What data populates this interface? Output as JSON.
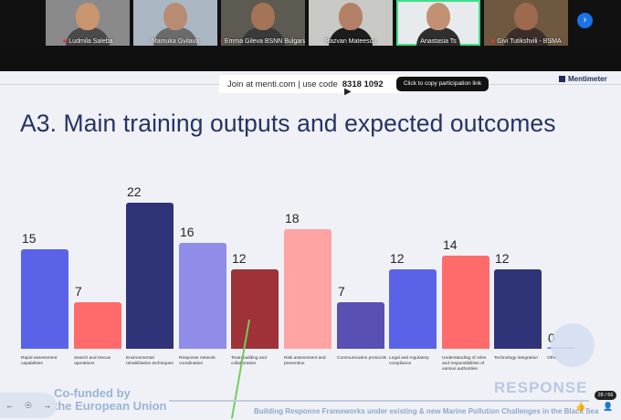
{
  "participants": [
    {
      "name": "Ludmila Saleba",
      "muted": true,
      "skin": "#c9956f",
      "shirt": "#4a4a4a",
      "bg": "#8a8a8a"
    },
    {
      "name": "Mamuka Gvilava",
      "muted": false,
      "skin": "#b88c73",
      "shirt": "#6b6b6b",
      "bg": "#aab7c2"
    },
    {
      "name": "Emma Gileva BSNN Bulgaria",
      "muted": true,
      "skin": "#a37456",
      "shirt": "#3a3a3a",
      "bg": "#5d5a52"
    },
    {
      "name": "Razvan Mateescu",
      "muted": false,
      "skin": "#b18066",
      "shirt": "#1d1d1d",
      "bg": "#c8c8c4"
    },
    {
      "name": "Anastasia Ts",
      "muted": false,
      "skin": "#c29173",
      "shirt": "#2f2f2f",
      "bg": "#e7ebee"
    },
    {
      "name": "Givi Tutikshvili - BSMA",
      "muted": true,
      "skin": "#9d6a4f",
      "shirt": "#3b2e2b",
      "bg": "#6e5840"
    }
  ],
  "next_icon": "chevron-right-icon",
  "join": {
    "text": "Join at menti.com | use code",
    "code": "8318 1092",
    "copy_label": "Click to copy participation link"
  },
  "brand": "Mentimeter",
  "title": "A3. Main training outputs and expected outcomes",
  "chart_data": {
    "type": "bar",
    "categories": [
      "Rapid assessment capabilities",
      "Search and rescue operations",
      "Environmental rehabilitation techniques",
      "Response network coordination",
      "Team building and collaboration",
      "Risk assessment and prevention",
      "Communication protocols",
      "Legal and regulatory compliance",
      "Understanding of roles and responsibilities of various authorities",
      "Technology integration",
      "Other"
    ],
    "values": [
      15,
      7,
      22,
      16,
      12,
      18,
      7,
      12,
      14,
      12,
      0
    ],
    "colors": [
      "#5a63e8",
      "#ff6b6b",
      "#2f3478",
      "#8f8de8",
      "#9e3238",
      "#ffa3a3",
      "#5a4fb3",
      "#5a63e8",
      "#ff6b6b",
      "#2f3478",
      "#8f8de8"
    ],
    "ylim": [
      0,
      22
    ],
    "grid": false
  },
  "footer": {
    "cofunded": "Co-funded by",
    "eu": "the European Union",
    "tagline": "Building Response Frameworks under existing & new Marine Pollution Challenges in the Black Sea",
    "logo": "RESPONSE",
    "page": "28 / 66"
  },
  "icons": {
    "back": "arrow-left-icon",
    "pointer": "pointer-icon",
    "forward": "arrow-right-icon",
    "reaction": "thumbs-up-icon",
    "user": "user-icon"
  }
}
